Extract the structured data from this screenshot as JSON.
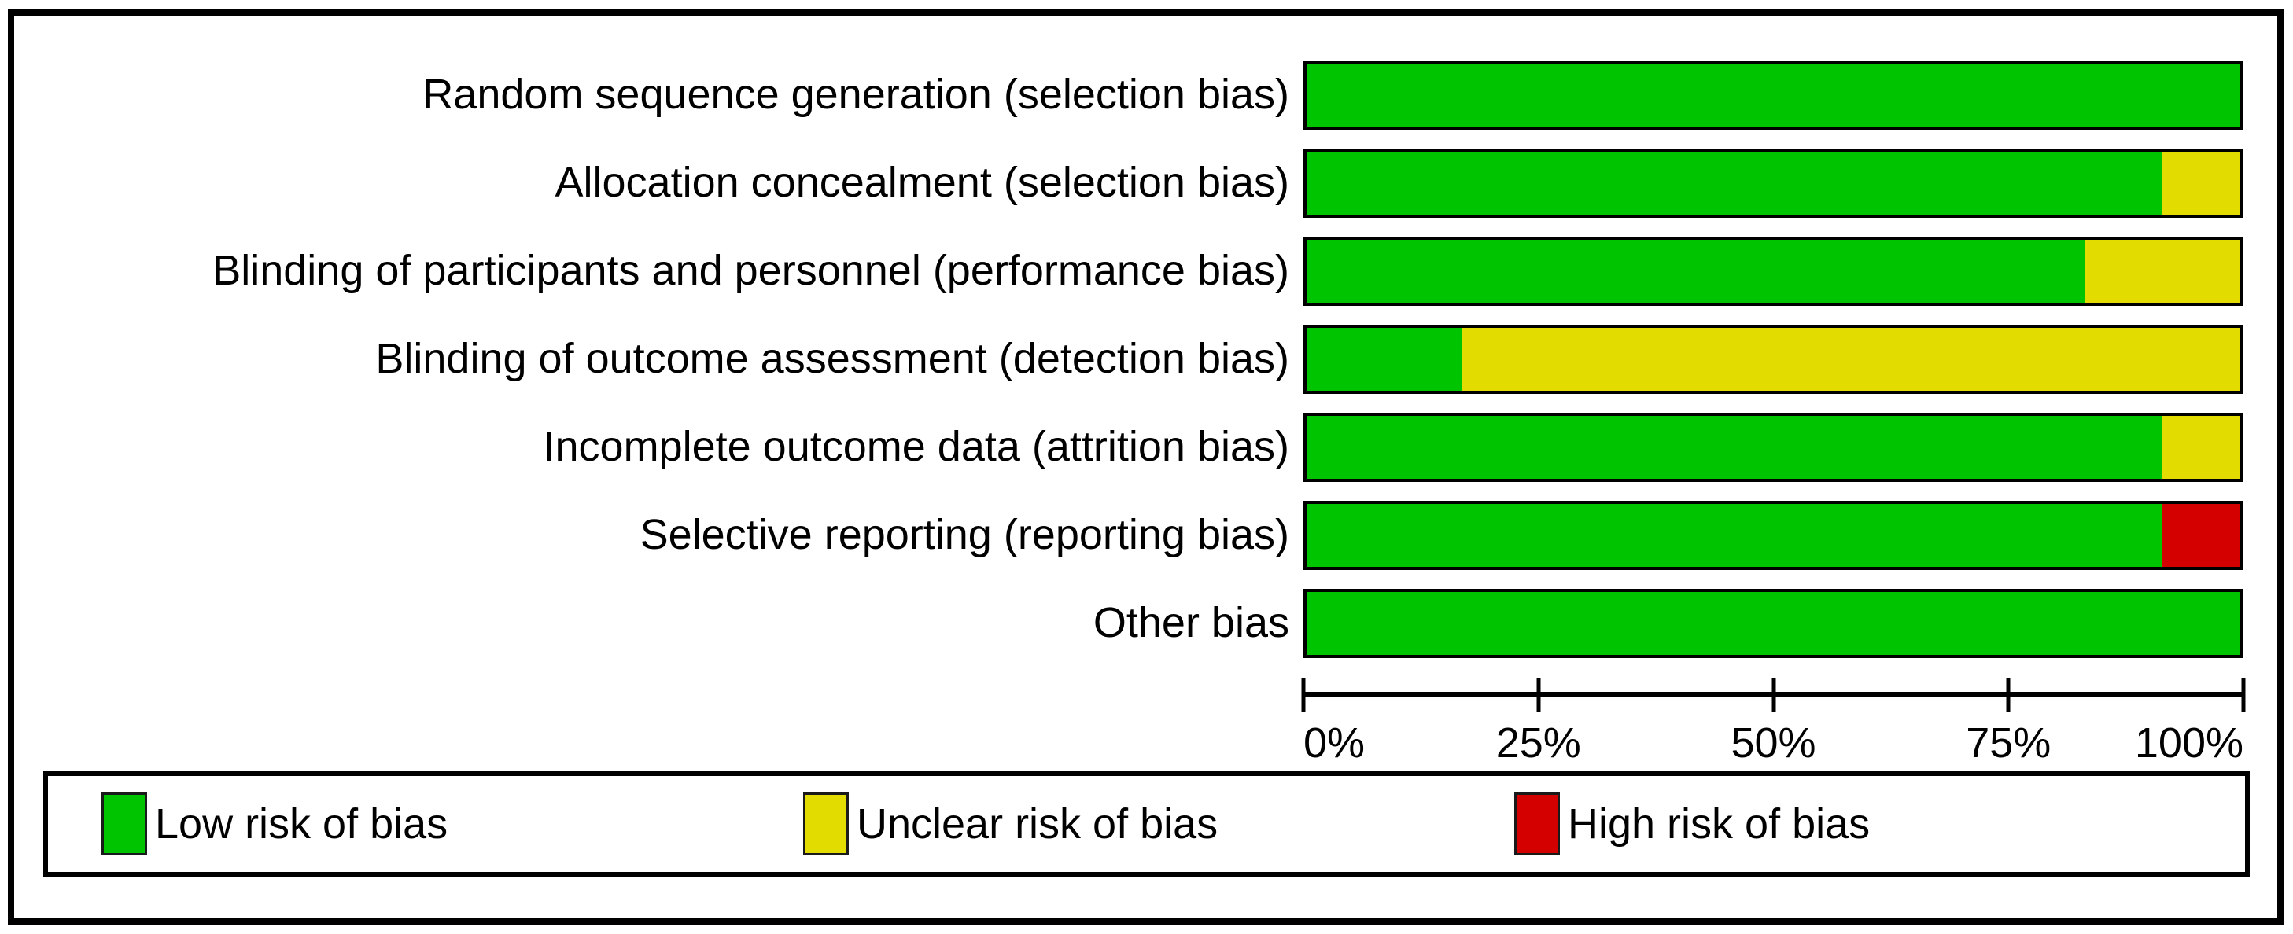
{
  "chart_data": {
    "type": "bar",
    "subtype": "horizontal-stacked-percentage",
    "title": "",
    "categories": [
      "Random sequence generation (selection bias)",
      "Allocation concealment (selection bias)",
      "Blinding of participants and personnel (performance bias)",
      "Blinding of outcome assessment (detection bias)",
      "Incomplete outcome data (attrition bias)",
      "Selective reporting (reporting bias)",
      "Other bias"
    ],
    "series": [
      {
        "key": "low",
        "name": "Low risk of bias",
        "color": "#00c400",
        "values": [
          100,
          91.7,
          83.3,
          16.7,
          91.7,
          91.7,
          100
        ]
      },
      {
        "key": "unclear",
        "name": "Unclear risk of bias",
        "color": "#e2dc00",
        "values": [
          0,
          8.3,
          16.7,
          83.3,
          8.3,
          0,
          0
        ]
      },
      {
        "key": "high",
        "name": "High risk of bias",
        "color": "#d40000",
        "values": [
          0,
          0,
          0,
          0,
          0,
          8.3,
          0
        ]
      }
    ],
    "x_axis": {
      "tick_labels": [
        "0%",
        "25%",
        "50%",
        "75%",
        "100%"
      ],
      "range_percent": [
        0,
        100
      ],
      "grid": false
    },
    "legend": {
      "position": "bottom-box",
      "entries": [
        {
          "key": "low",
          "label": "Low risk of bias",
          "color": "#00c400"
        },
        {
          "key": "unclear",
          "label": "Unclear risk of bias",
          "color": "#e2dc00"
        },
        {
          "key": "high",
          "label": "High risk of bias",
          "color": "#d40000"
        }
      ]
    },
    "colors": {
      "low": "#00c400",
      "unclear": "#e2dc00",
      "high": "#d40000",
      "bar_border": "#000000",
      "frame_border": "#000000",
      "background": "#ffffff"
    }
  }
}
